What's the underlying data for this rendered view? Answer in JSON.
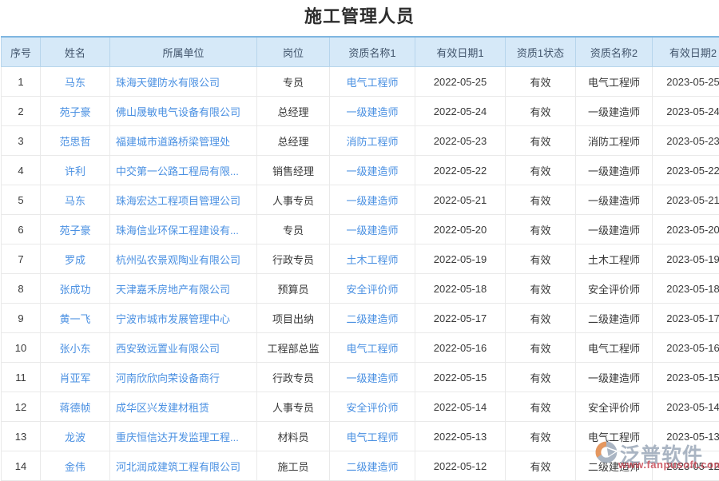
{
  "page": {
    "title": "施工管理人员"
  },
  "table": {
    "columns": [
      {
        "key": "index",
        "label": "序号"
      },
      {
        "key": "name",
        "label": "姓名"
      },
      {
        "key": "company",
        "label": "所属单位"
      },
      {
        "key": "position",
        "label": "岗位"
      },
      {
        "key": "qual1",
        "label": "资质名称1"
      },
      {
        "key": "date1",
        "label": "有效日期1"
      },
      {
        "key": "status1",
        "label": "资质1状态"
      },
      {
        "key": "qual2",
        "label": "资质名称2"
      },
      {
        "key": "date2",
        "label": "有效日期2"
      }
    ],
    "rows": [
      {
        "index": "1",
        "name": "马东",
        "company": "珠海天健防水有限公司",
        "position": "专员",
        "qual1": "电气工程师",
        "date1": "2022-05-25",
        "status1": "有效",
        "qual2": "电气工程师",
        "date2": "2023-05-25"
      },
      {
        "index": "2",
        "name": "苑子豪",
        "company": "佛山晟敏电气设备有限公司",
        "position": "总经理",
        "qual1": "一级建造师",
        "date1": "2022-05-24",
        "status1": "有效",
        "qual2": "一级建造师",
        "date2": "2023-05-24"
      },
      {
        "index": "3",
        "name": "范思哲",
        "company": "福建城市道路桥梁管理处",
        "position": "总经理",
        "qual1": "消防工程师",
        "date1": "2022-05-23",
        "status1": "有效",
        "qual2": "消防工程师",
        "date2": "2023-05-23"
      },
      {
        "index": "4",
        "name": "许利",
        "company": "中交第一公路工程局有限...",
        "position": "销售经理",
        "qual1": "一级建造师",
        "date1": "2022-05-22",
        "status1": "有效",
        "qual2": "一级建造师",
        "date2": "2023-05-22"
      },
      {
        "index": "5",
        "name": "马东",
        "company": "珠海宏达工程项目管理公司",
        "position": "人事专员",
        "qual1": "一级建造师",
        "date1": "2022-05-21",
        "status1": "有效",
        "qual2": "一级建造师",
        "date2": "2023-05-21"
      },
      {
        "index": "6",
        "name": "苑子豪",
        "company": "珠海信业环保工程建设有...",
        "position": "专员",
        "qual1": "一级建造师",
        "date1": "2022-05-20",
        "status1": "有效",
        "qual2": "一级建造师",
        "date2": "2023-05-20"
      },
      {
        "index": "7",
        "name": "罗成",
        "company": "杭州弘农景观陶业有限公司",
        "position": "行政专员",
        "qual1": "土木工程师",
        "date1": "2022-05-19",
        "status1": "有效",
        "qual2": "土木工程师",
        "date2": "2023-05-19"
      },
      {
        "index": "8",
        "name": "张成功",
        "company": "天津嘉禾房地产有限公司",
        "position": "预算员",
        "qual1": "安全评价师",
        "date1": "2022-05-18",
        "status1": "有效",
        "qual2": "安全评价师",
        "date2": "2023-05-18"
      },
      {
        "index": "9",
        "name": "黄一飞",
        "company": "宁波市城市发展管理中心",
        "position": "项目出纳",
        "qual1": "二级建造师",
        "date1": "2022-05-17",
        "status1": "有效",
        "qual2": "二级建造师",
        "date2": "2023-05-17"
      },
      {
        "index": "10",
        "name": "张小东",
        "company": "西安致远置业有限公司",
        "position": "工程部总监",
        "qual1": "电气工程师",
        "date1": "2022-05-16",
        "status1": "有效",
        "qual2": "电气工程师",
        "date2": "2023-05-16"
      },
      {
        "index": "11",
        "name": "肖亚军",
        "company": "河南欣欣向荣设备商行",
        "position": "行政专员",
        "qual1": "一级建造师",
        "date1": "2022-05-15",
        "status1": "有效",
        "qual2": "一级建造师",
        "date2": "2023-05-15"
      },
      {
        "index": "12",
        "name": "蒋德帧",
        "company": "成华区兴发建材租赁",
        "position": "人事专员",
        "qual1": "安全评价师",
        "date1": "2022-05-14",
        "status1": "有效",
        "qual2": "安全评价师",
        "date2": "2023-05-14"
      },
      {
        "index": "13",
        "name": "龙波",
        "company": "重庆恒信达开发监理工程...",
        "position": "材料员",
        "qual1": "电气工程师",
        "date1": "2022-05-13",
        "status1": "有效",
        "qual2": "电气工程师",
        "date2": "2023-05-13"
      },
      {
        "index": "14",
        "name": "金伟",
        "company": "河北润成建筑工程有限公司",
        "position": "施工员",
        "qual1": "二级建造师",
        "date1": "2022-05-12",
        "status1": "有效",
        "qual2": "二级建造师",
        "date2": "2023-05-12"
      }
    ]
  },
  "watermark": {
    "brand": "泛普软件",
    "url_text": "www.fanpusoft.com"
  },
  "colors": {
    "link_blue": "#4a90e2",
    "header_bg": "#d6e9f8",
    "header_top_border": "#7fb6e0",
    "grid": "#e9e9e9",
    "watermark_gray": "#98a5b6",
    "watermark_red": "#c5404e",
    "logo_orange": "#e0813c"
  }
}
